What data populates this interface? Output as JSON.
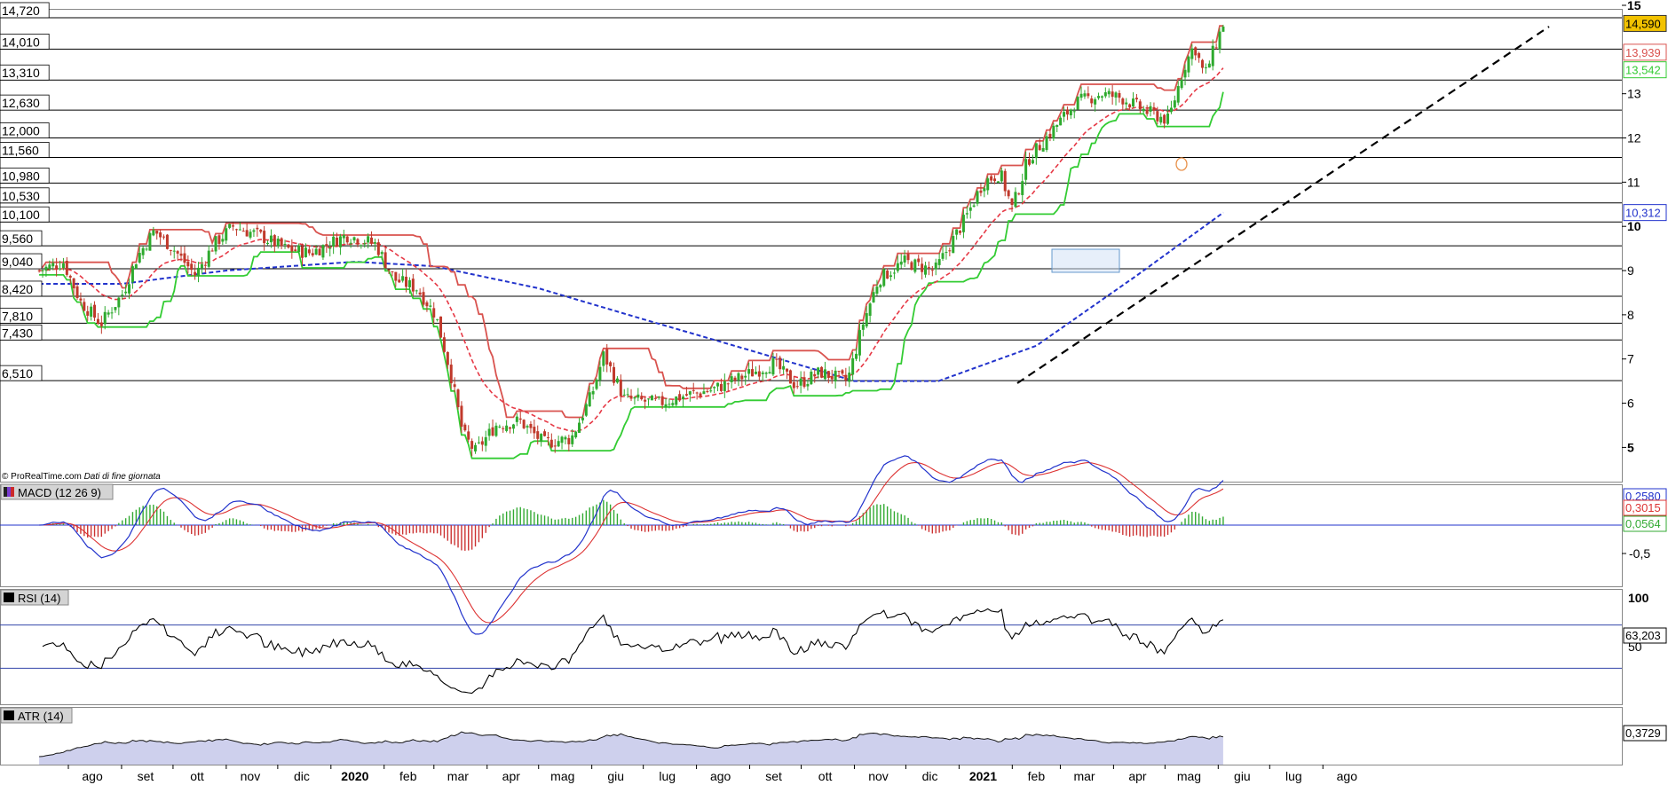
{
  "copyright": "© ProRealTime.com",
  "copyright_note": "Dati di fine giornata",
  "colors": {
    "price_up": "#2eaa2e",
    "price_down": "#c0392b",
    "upper_band": "#d9534f",
    "lower_band": "#33cc33",
    "ma_short": "#e63946",
    "ma_long": "#2233cc",
    "trendline": "#000000",
    "macd_line": "#2233cc",
    "signal_line": "#dd3333",
    "rsi_line": "#000000",
    "atr_fill": "#c5c8ea",
    "last_price_tag": "#f2c200"
  },
  "chart_data": [
    {
      "type": "candlestick",
      "panel": "price",
      "x_labels": [
        "ago",
        "set",
        "ott",
        "nov",
        "dic",
        "2020",
        "feb",
        "mar",
        "apr",
        "mag",
        "giu",
        "lug",
        "ago",
        "set",
        "ott",
        "nov",
        "dic",
        "2021",
        "feb",
        "mar",
        "apr",
        "mag",
        "giu",
        "lug",
        "ago"
      ],
      "y_ticks": [
        5,
        6,
        7,
        8,
        9,
        10,
        11,
        12,
        13,
        15
      ],
      "ylim": [
        4.3,
        15.2
      ],
      "horizontal_levels": [
        "14,720",
        "14,010",
        "13,310",
        "12,630",
        "12,000",
        "11,560",
        "10,980",
        "10,530",
        "10,100",
        "9,560",
        "9,040",
        "8,420",
        "7,810",
        "7,430",
        "6,510"
      ],
      "value_tags": [
        {
          "label": "14,590",
          "style": "last-price"
        },
        {
          "label": "13,939",
          "style": "upper-band"
        },
        {
          "label": "13,542",
          "style": "lower-band"
        },
        {
          "label": "10,312",
          "style": "ma-long"
        }
      ],
      "close_trace": [
        {
          "date": "2019-07-15",
          "close": 9.0
        },
        {
          "date": "2019-07-29",
          "close": 9.2
        },
        {
          "date": "2019-08-08",
          "close": 8.3
        },
        {
          "date": "2019-08-20",
          "close": 7.8
        },
        {
          "date": "2019-09-02",
          "close": 8.5
        },
        {
          "date": "2019-09-10",
          "close": 9.3
        },
        {
          "date": "2019-09-20",
          "close": 9.9
        },
        {
          "date": "2019-10-01",
          "close": 9.5
        },
        {
          "date": "2019-10-14",
          "close": 8.9
        },
        {
          "date": "2019-10-25",
          "close": 9.6
        },
        {
          "date": "2019-11-05",
          "close": 10.0
        },
        {
          "date": "2019-11-20",
          "close": 9.8
        },
        {
          "date": "2019-12-05",
          "close": 9.5
        },
        {
          "date": "2019-12-20",
          "close": 9.4
        },
        {
          "date": "2020-01-10",
          "close": 9.8
        },
        {
          "date": "2020-01-27",
          "close": 9.6
        },
        {
          "date": "2020-02-07",
          "close": 8.8
        },
        {
          "date": "2020-02-20",
          "close": 8.6
        },
        {
          "date": "2020-03-02",
          "close": 8.0
        },
        {
          "date": "2020-03-10",
          "close": 6.8
        },
        {
          "date": "2020-03-18",
          "close": 5.3
        },
        {
          "date": "2020-03-25",
          "close": 4.9
        },
        {
          "date": "2020-04-06",
          "close": 5.5
        },
        {
          "date": "2020-04-20",
          "close": 5.6
        },
        {
          "date": "2020-05-04",
          "close": 5.1
        },
        {
          "date": "2020-05-20",
          "close": 5.2
        },
        {
          "date": "2020-06-01",
          "close": 6.2
        },
        {
          "date": "2020-06-08",
          "close": 7.1
        },
        {
          "date": "2020-06-20",
          "close": 6.1
        },
        {
          "date": "2020-07-10",
          "close": 6.0
        },
        {
          "date": "2020-07-28",
          "close": 6.2
        },
        {
          "date": "2020-08-10",
          "close": 6.3
        },
        {
          "date": "2020-08-28",
          "close": 6.6
        },
        {
          "date": "2020-09-15",
          "close": 6.9
        },
        {
          "date": "2020-09-28",
          "close": 6.4
        },
        {
          "date": "2020-10-12",
          "close": 6.7
        },
        {
          "date": "2020-10-28",
          "close": 6.5
        },
        {
          "date": "2020-11-06",
          "close": 7.8
        },
        {
          "date": "2020-11-15",
          "close": 8.8
        },
        {
          "date": "2020-11-30",
          "close": 9.2
        },
        {
          "date": "2020-12-18",
          "close": 9.0
        },
        {
          "date": "2021-01-05",
          "close": 10.2
        },
        {
          "date": "2021-01-15",
          "close": 11.0
        },
        {
          "date": "2021-01-25",
          "close": 11.2
        },
        {
          "date": "2021-02-01",
          "close": 10.4
        },
        {
          "date": "2021-02-10",
          "close": 11.5
        },
        {
          "date": "2021-02-25",
          "close": 12.2
        },
        {
          "date": "2021-03-10",
          "close": 12.8
        },
        {
          "date": "2021-03-25",
          "close": 13.0
        },
        {
          "date": "2021-04-06",
          "close": 12.9
        },
        {
          "date": "2021-04-20",
          "close": 12.6
        },
        {
          "date": "2021-05-03",
          "close": 12.4
        },
        {
          "date": "2021-05-12",
          "close": 13.6
        },
        {
          "date": "2021-05-18",
          "close": 14.1
        },
        {
          "date": "2021-05-24",
          "close": 13.4
        },
        {
          "date": "2021-06-04",
          "close": 14.59
        }
      ],
      "ma_long_trace": [
        {
          "date": "2019-07-15",
          "value": 8.7
        },
        {
          "date": "2019-09-01",
          "value": 8.7
        },
        {
          "date": "2019-11-01",
          "value": 9.0
        },
        {
          "date": "2020-01-15",
          "value": 9.2
        },
        {
          "date": "2020-03-01",
          "value": 9.1
        },
        {
          "date": "2020-05-01",
          "value": 8.6
        },
        {
          "date": "2020-07-01",
          "value": 7.9
        },
        {
          "date": "2020-09-01",
          "value": 7.2
        },
        {
          "date": "2020-11-01",
          "value": 6.5
        },
        {
          "date": "2020-12-20",
          "value": 6.5
        },
        {
          "date": "2021-02-15",
          "value": 7.3
        },
        {
          "date": "2021-04-15",
          "value": 8.9
        },
        {
          "date": "2021-06-04",
          "value": 10.312
        }
      ]
    },
    {
      "type": "line",
      "panel": "MACD",
      "title": "MACD (12 26 9)",
      "y_ticks": [
        "-0,5"
      ],
      "value_tags": [
        "0,2580",
        "0,3015",
        "0,0564"
      ]
    },
    {
      "type": "line",
      "panel": "RSI",
      "title": "RSI (14)",
      "y_ticks": [
        "100",
        "50"
      ],
      "value_tags": [
        "63,203"
      ]
    },
    {
      "type": "area",
      "panel": "ATR",
      "title": "ATR (14)",
      "value_tags": [
        "0,3729"
      ]
    }
  ]
}
